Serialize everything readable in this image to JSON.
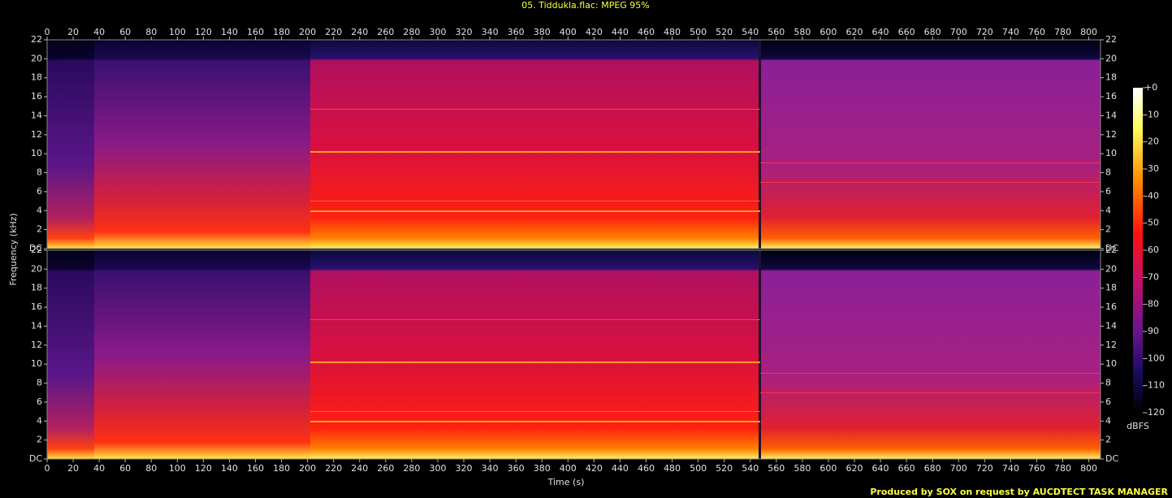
{
  "chart_data": {
    "type": "spectrogram",
    "title": "05. Tiddukla.flac: MPEG 95%",
    "xlabel": "Time (s)",
    "ylabel": "Frequency (kHz)",
    "footer": "Produced by SOX on request by AUCDTECT TASK MANAGER",
    "xlim": [
      0,
      809
    ],
    "xticks": [
      0,
      20,
      40,
      60,
      80,
      100,
      120,
      140,
      160,
      180,
      200,
      220,
      240,
      260,
      280,
      300,
      320,
      340,
      360,
      380,
      400,
      420,
      440,
      460,
      480,
      500,
      520,
      540,
      560,
      580,
      600,
      620,
      640,
      660,
      680,
      700,
      720,
      740,
      760,
      780,
      800
    ],
    "ylim": [
      0,
      22
    ],
    "yticks": [
      {
        "value": 0,
        "label": "DC"
      },
      2,
      4,
      6,
      8,
      10,
      12,
      14,
      16,
      18,
      20,
      22
    ],
    "colorbar": {
      "label": "dBFS",
      "lim": [
        -120,
        0
      ],
      "ticks": [
        {
          "value": 0,
          "label": "+0"
        },
        -10,
        -20,
        -30,
        -40,
        -50,
        -60,
        -70,
        -80,
        -90,
        -100,
        -110,
        -120
      ]
    }
  }
}
